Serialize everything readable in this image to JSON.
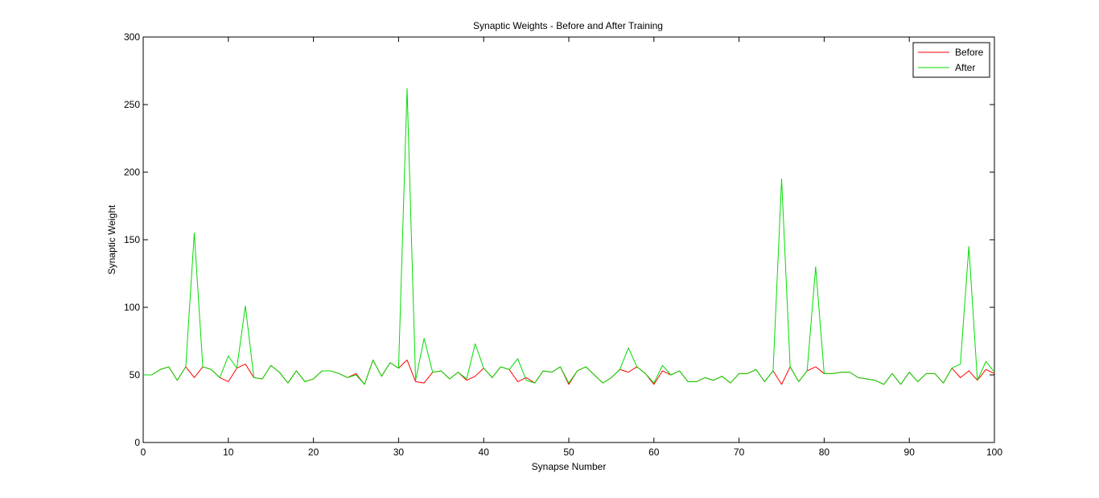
{
  "chart_data": {
    "type": "line",
    "title": "Synaptic Weights - Before and After Training",
    "xlabel": "Synapse Number",
    "ylabel": "Synaptic Weight",
    "xlim": [
      0,
      100
    ],
    "ylim": [
      0,
      300
    ],
    "xticks": [
      0,
      10,
      20,
      30,
      40,
      50,
      60,
      70,
      80,
      90,
      100
    ],
    "yticks": [
      0,
      50,
      100,
      150,
      200,
      250,
      300
    ],
    "grid": false,
    "legend_position": "top-right",
    "x": [
      0,
      1,
      2,
      3,
      4,
      5,
      6,
      7,
      8,
      9,
      10,
      11,
      12,
      13,
      14,
      15,
      16,
      17,
      18,
      19,
      20,
      21,
      22,
      23,
      24,
      25,
      26,
      27,
      28,
      29,
      30,
      31,
      32,
      33,
      34,
      35,
      36,
      37,
      38,
      39,
      40,
      41,
      42,
      43,
      44,
      45,
      46,
      47,
      48,
      49,
      50,
      51,
      52,
      53,
      54,
      55,
      56,
      57,
      58,
      59,
      60,
      61,
      62,
      63,
      64,
      65,
      66,
      67,
      68,
      69,
      70,
      71,
      72,
      73,
      74,
      75,
      76,
      77,
      78,
      79,
      80,
      81,
      82,
      83,
      84,
      85,
      86,
      87,
      88,
      89,
      90,
      91,
      92,
      93,
      94,
      95,
      96,
      97,
      98,
      99,
      100
    ],
    "series": [
      {
        "name": "Before",
        "color": "#ff0000",
        "values": [
          50,
          50,
          54,
          56,
          46,
          56,
          48,
          56,
          54,
          48,
          45,
          55,
          58,
          48,
          47,
          57,
          52,
          44,
          53,
          45,
          47,
          53,
          53,
          51,
          48,
          51,
          43,
          61,
          49,
          59,
          55,
          61,
          45,
          44,
          52,
          53,
          47,
          52,
          46,
          49,
          55,
          48,
          56,
          54,
          45,
          48,
          44,
          53,
          52,
          56,
          43,
          53,
          56,
          50,
          44,
          48,
          54,
          52,
          56,
          51,
          43,
          53,
          50,
          53,
          45,
          45,
          48,
          46,
          49,
          44,
          51,
          51,
          54,
          45,
          53,
          43,
          56,
          45,
          53,
          56,
          51,
          51,
          52,
          52,
          48,
          47,
          46,
          43,
          51,
          43,
          52,
          45,
          51,
          51,
          44,
          55,
          48,
          53,
          46,
          54,
          51
        ]
      },
      {
        "name": "After",
        "color": "#00dd00",
        "values": [
          50,
          50,
          54,
          56,
          46,
          56,
          155,
          56,
          54,
          48,
          64,
          55,
          101,
          48,
          47,
          57,
          52,
          44,
          53,
          45,
          47,
          53,
          53,
          51,
          48,
          50,
          43,
          61,
          49,
          59,
          55,
          262,
          46,
          77,
          52,
          53,
          47,
          52,
          47,
          73,
          55,
          48,
          56,
          54,
          62,
          46,
          44,
          53,
          52,
          56,
          44,
          53,
          56,
          50,
          44,
          48,
          54,
          70,
          56,
          51,
          44,
          57,
          50,
          53,
          45,
          45,
          48,
          46,
          49,
          44,
          51,
          51,
          54,
          45,
          53,
          195,
          56,
          45,
          53,
          130,
          51,
          51,
          52,
          52,
          48,
          47,
          46,
          43,
          51,
          43,
          52,
          45,
          51,
          51,
          44,
          55,
          58,
          145,
          46,
          60,
          52
        ]
      }
    ]
  }
}
